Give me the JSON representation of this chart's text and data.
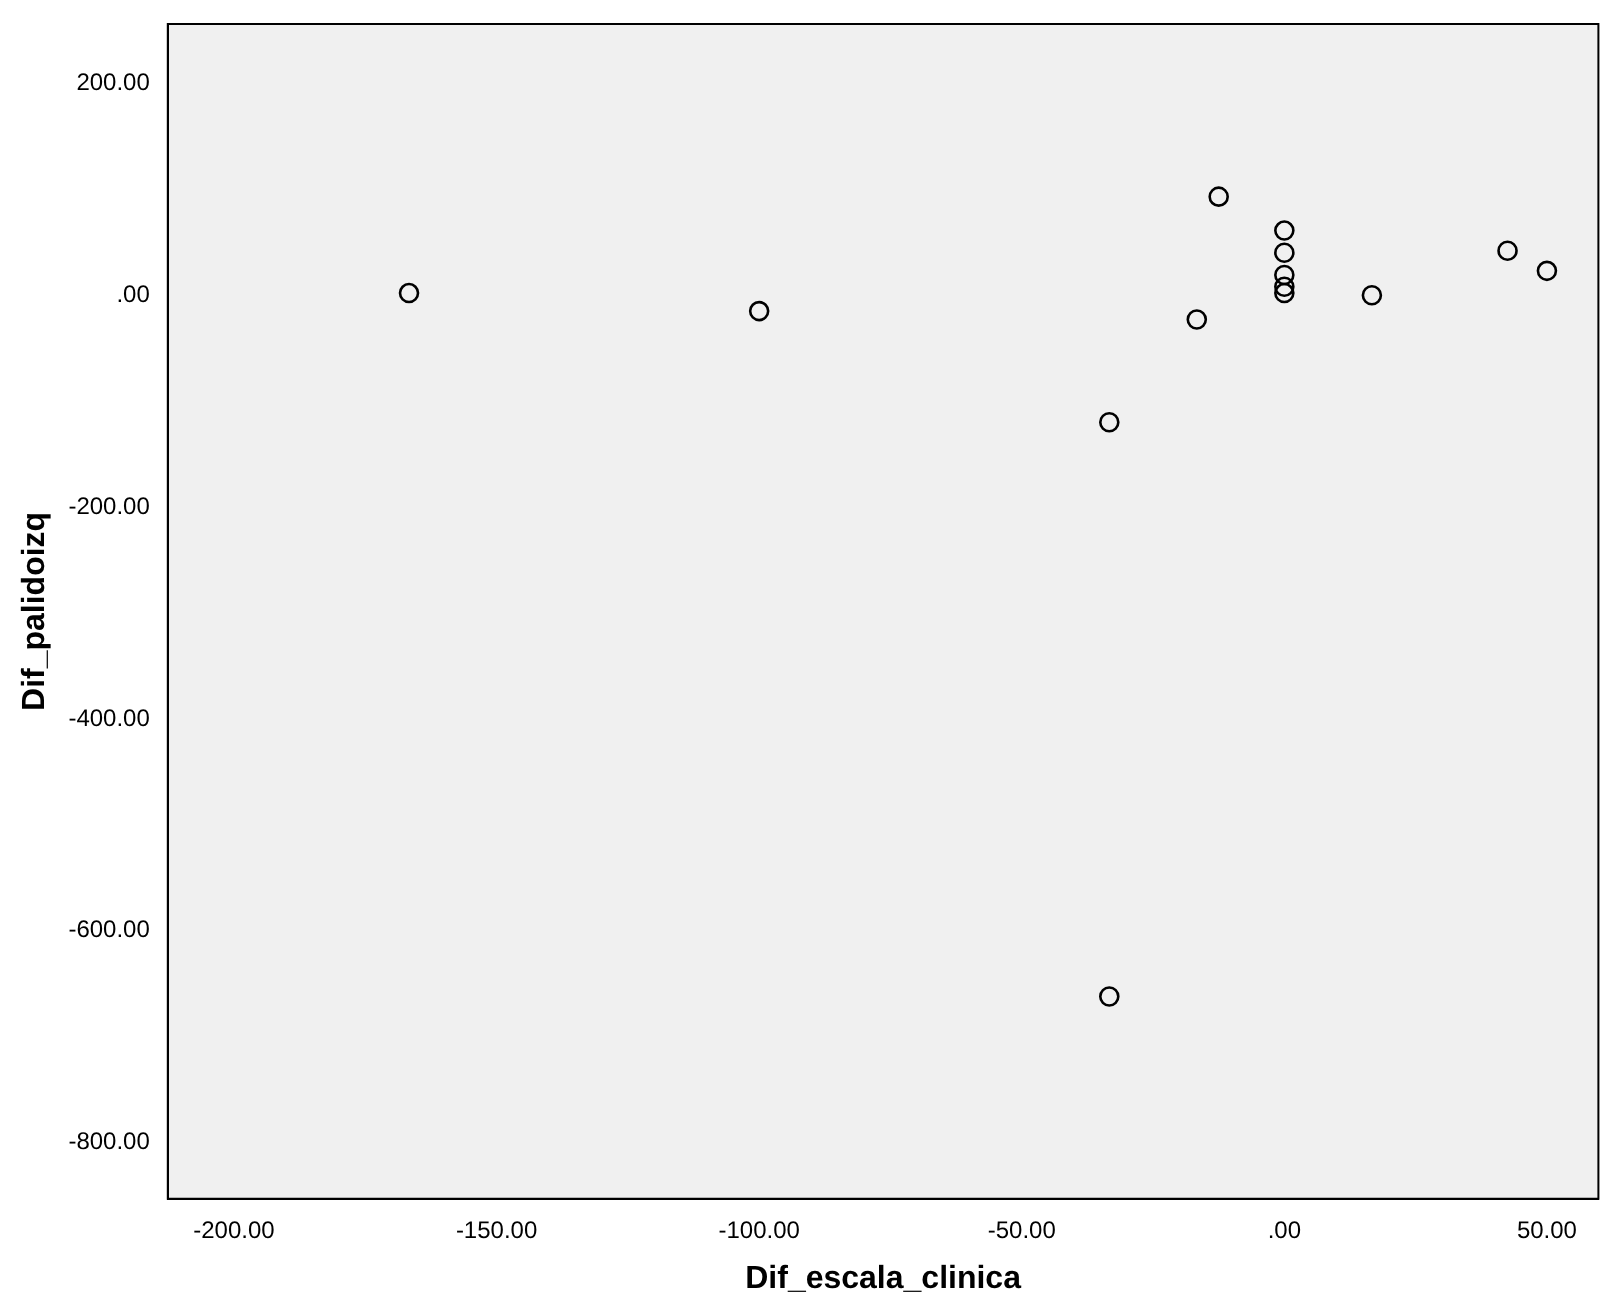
{
  "chart_data": {
    "type": "scatter",
    "xlabel": "Dif_escala_clinica",
    "ylabel": "Dif_palidoizq",
    "x": [
      -166.67,
      -100,
      -33.33,
      -33.33,
      -16.67,
      -12.5,
      0,
      0,
      0,
      0,
      0,
      16.67,
      42.5,
      50
    ],
    "values": [
      2,
      -15,
      -120,
      -662,
      -23,
      93,
      61,
      40,
      19,
      8,
      2,
      0,
      42,
      23
    ],
    "color": "#000000",
    "marker": "circle",
    "grid": false,
    "legend": false,
    "xlim": [
      -212.6,
      59.8
    ],
    "ylim": [
      -853,
      256
    ],
    "xticks": [
      {
        "value": -200,
        "label": "-200.00"
      },
      {
        "value": -150,
        "label": "-150.00"
      },
      {
        "value": -100,
        "label": "-100.00"
      },
      {
        "value": -50,
        "label": "-50.00"
      },
      {
        "value": 0,
        "label": ".00"
      },
      {
        "value": 50,
        "label": "50.00"
      }
    ],
    "yticks": [
      {
        "value": -800,
        "label": "-800.00"
      },
      {
        "value": -600,
        "label": "-600.00"
      },
      {
        "value": -400,
        "label": "-400.00"
      },
      {
        "value": -200,
        "label": "-200.00"
      },
      {
        "value": 0,
        "label": ".00"
      },
      {
        "value": 200,
        "label": "200.00"
      }
    ]
  }
}
